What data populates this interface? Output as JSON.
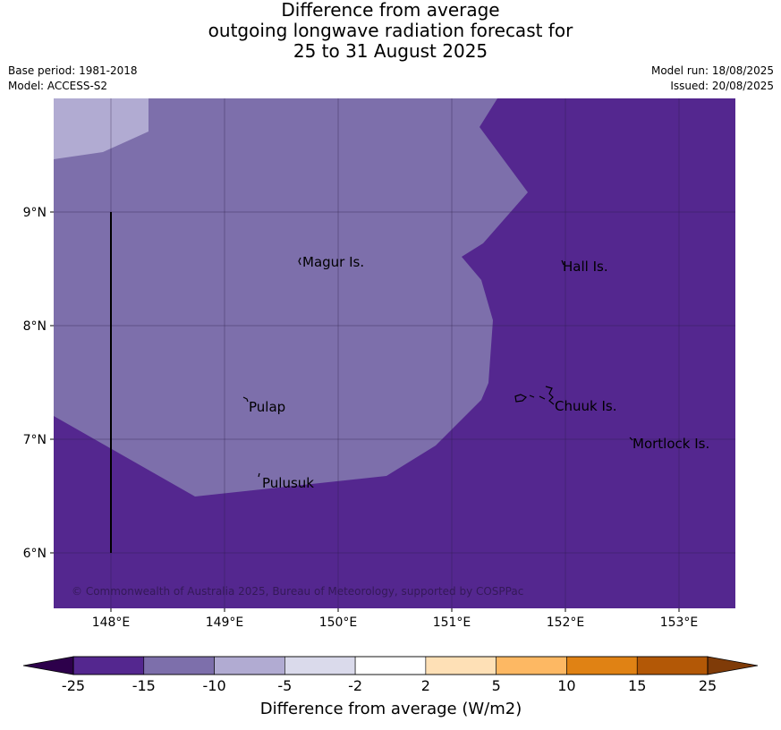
{
  "title": {
    "line1": "Difference from average",
    "line2": "outgoing longwave radiation forecast for",
    "line3": "25 to 31 August 2025"
  },
  "meta": {
    "base_period": "Base period: 1981-2018",
    "model": "Model: ACCESS-S2",
    "model_run": "Model run: 18/08/2025",
    "issued": "Issued: 20/08/2025"
  },
  "map": {
    "lon_ticks": [
      "148°E",
      "149°E",
      "150°E",
      "151°E",
      "152°E",
      "153°E"
    ],
    "lat_ticks": [
      "9°N",
      "8°N",
      "7°N",
      "6°N"
    ],
    "places": [
      "Magur Is.",
      "Hall Is.",
      "Pulap",
      "Chuuk Is.",
      "Mortlock Is.",
      "Pulusuk"
    ],
    "copyright": "© Commonwealth of Australia 2025, Bureau of Meteorology, supported by COSPPac",
    "colors": {
      "band_lt_-15": "#54278f",
      "band_-15_-10": "#7d6fab",
      "band_-10_-5": "#b1abd2",
      "grid": "#2a1d46"
    }
  },
  "colorbar": {
    "label": "Difference from average (W/m2)",
    "ticks": [
      "-25",
      "-15",
      "-10",
      "-5",
      "-2",
      "2",
      "5",
      "10",
      "15",
      "25"
    ],
    "colors": [
      "#54278f",
      "#7d6fab",
      "#b1abd2",
      "#dadaeb",
      "#ffffff",
      "#fee0b6",
      "#fdb863",
      "#e08214",
      "#b35806"
    ],
    "under_color": "#2d004b",
    "over_color": "#7f3b08"
  }
}
